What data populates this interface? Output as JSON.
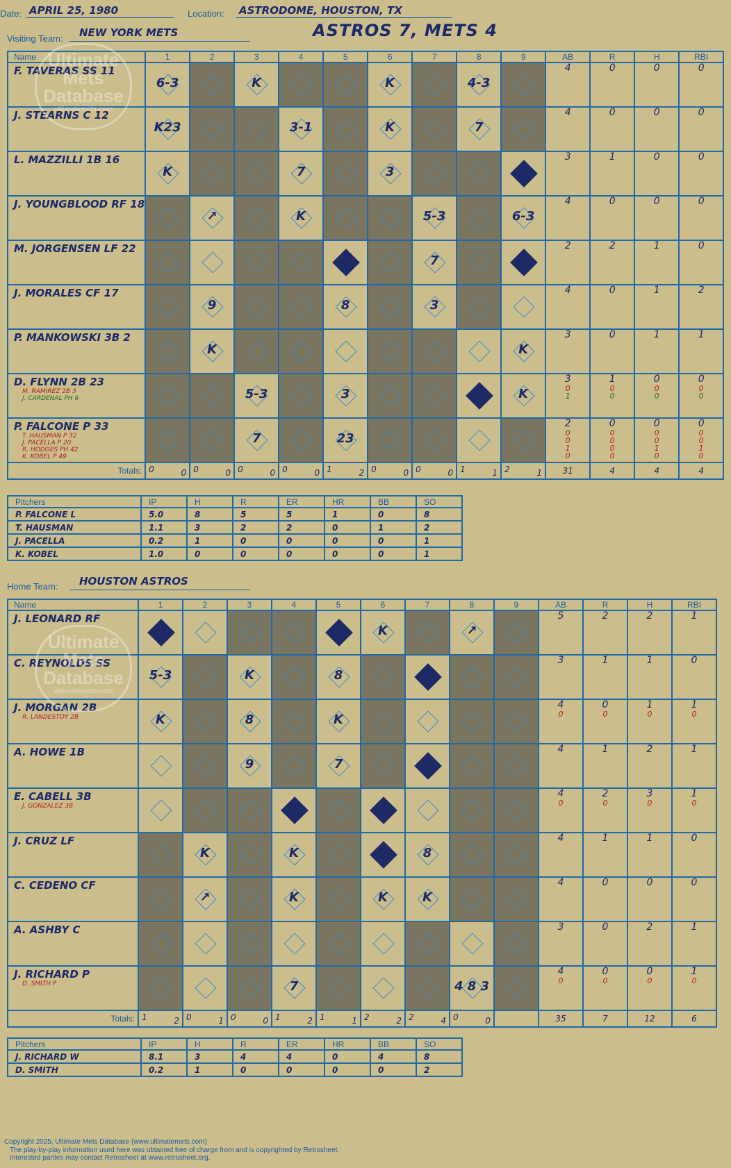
{
  "header": {
    "date_label": "Date:",
    "date": "APRIL 25, 1980",
    "location_label": "Location:",
    "location": "ASTRODOME, HOUSTON, TX",
    "result": "ASTROS 7, METS 4",
    "visiting_label": "Visiting Team:",
    "visiting_team": "NEW YORK METS",
    "home_label": "Home Team:",
    "home_team": "HOUSTON ASTROS"
  },
  "logo": {
    "line1": "Ultimate",
    "line2": "Mets",
    "line3": "Database",
    "url": "ultimatemets.com"
  },
  "columns": {
    "name": "Name",
    "innings": [
      "1",
      "2",
      "3",
      "4",
      "5",
      "6",
      "7",
      "8",
      "9"
    ],
    "ab": "AB",
    "r": "R",
    "h": "H",
    "rbi": "RBI",
    "totals": "Totals:",
    "r_short": "R",
    "h_short": "H"
  },
  "pitch_columns": {
    "name": "Pitchers",
    "ip": "IP",
    "h": "H",
    "r": "R",
    "er": "ER",
    "hr": "HR",
    "bb": "BB",
    "so": "SO"
  },
  "visitors": {
    "batters": [
      {
        "name": "F. TAVERAS SS 11",
        "subs": [],
        "ab": [
          "4"
        ],
        "r": [
          "0"
        ],
        "h": [
          "0"
        ],
        "rbi": [
          "0"
        ]
      },
      {
        "name": "J. STEARNS C 12",
        "subs": [],
        "ab": [
          "4"
        ],
        "r": [
          "0"
        ],
        "h": [
          "0"
        ],
        "rbi": [
          "0"
        ]
      },
      {
        "name": "L. MAZZILLI 1B 16",
        "subs": [],
        "ab": [
          "3"
        ],
        "r": [
          "1"
        ],
        "h": [
          "0"
        ],
        "rbi": [
          "0"
        ]
      },
      {
        "name": "J. YOUNGBLOOD RF 18",
        "subs": [],
        "ab": [
          "4"
        ],
        "r": [
          "0"
        ],
        "h": [
          "0"
        ],
        "rbi": [
          "0"
        ]
      },
      {
        "name": "M. JORGENSEN LF 22",
        "subs": [],
        "ab": [
          "2"
        ],
        "r": [
          "2"
        ],
        "h": [
          "1"
        ],
        "rbi": [
          "0"
        ]
      },
      {
        "name": "J. MORALES CF 17",
        "subs": [],
        "ab": [
          "4"
        ],
        "r": [
          "0"
        ],
        "h": [
          "1"
        ],
        "rbi": [
          "2"
        ]
      },
      {
        "name": "P. MANKOWSKI 3B 2",
        "subs": [],
        "ab": [
          "3"
        ],
        "r": [
          "0"
        ],
        "h": [
          "1"
        ],
        "rbi": [
          "1"
        ]
      },
      {
        "name": "D. FLYNN 2B 23",
        "subs": [
          "M. RAMIREZ 2B 3",
          "J. CARDENAL PH 6"
        ],
        "ab": [
          "3",
          "0",
          "1"
        ],
        "r": [
          "1",
          "0",
          "0"
        ],
        "h": [
          "0",
          "0",
          "0"
        ],
        "rbi": [
          "0",
          "0",
          "0"
        ]
      },
      {
        "name": "P. FALCONE P 33",
        "subs": [
          "T. HAUSMAN P 32",
          "J. PACELLA P 20",
          "R. HODGES PH 42",
          "K. KOBEL P 49"
        ],
        "ab": [
          "2",
          "0",
          "0",
          "1",
          "0"
        ],
        "r": [
          "0",
          "0",
          "0",
          "0",
          "0"
        ],
        "h": [
          "0",
          "0",
          "0",
          "1",
          "0"
        ],
        "rbi": [
          "0",
          "0",
          "0",
          "1",
          "0"
        ]
      }
    ],
    "grid": [
      [
        "t",
        "g",
        "t",
        "g",
        "g",
        "t",
        "g",
        "t",
        "g"
      ],
      [
        "t",
        "g",
        "g",
        "t",
        "g",
        "t",
        "g",
        "t",
        "g"
      ],
      [
        "t",
        "g",
        "g",
        "t",
        "g",
        "t",
        "g",
        "g",
        "t"
      ],
      [
        "g",
        "t",
        "g",
        "t",
        "g",
        "g",
        "t",
        "g",
        "t"
      ],
      [
        "g",
        "t",
        "g",
        "g",
        "t",
        "g",
        "t",
        "g",
        "t"
      ],
      [
        "g",
        "t",
        "g",
        "g",
        "t",
        "g",
        "t",
        "g",
        "t"
      ],
      [
        "g",
        "t",
        "g",
        "g",
        "t",
        "g",
        "g",
        "t",
        "t"
      ],
      [
        "g",
        "g",
        "t",
        "g",
        "t",
        "g",
        "g",
        "t",
        "t"
      ],
      [
        "g",
        "g",
        "t",
        "g",
        "t",
        "g",
        "g",
        "t",
        "g"
      ]
    ],
    "marks": [
      [
        "6-3",
        "",
        "K",
        "",
        "",
        "K",
        "",
        "4-3",
        ""
      ],
      [
        "K23",
        "",
        "",
        "3-1",
        "",
        "K",
        "",
        "7",
        ""
      ],
      [
        "K",
        "",
        "",
        "7",
        "",
        "3",
        "",
        "",
        "●"
      ],
      [
        "",
        "↗",
        "",
        "K",
        "",
        "",
        "5-3",
        "",
        "6-3"
      ],
      [
        "",
        "",
        "",
        "",
        "●",
        "",
        "7",
        "",
        "●"
      ],
      [
        "",
        "9",
        "",
        "",
        "8",
        "",
        "3",
        "",
        ""
      ],
      [
        "",
        "K",
        "",
        "",
        "",
        "",
        "",
        "",
        "K"
      ],
      [
        "",
        "",
        "5-3",
        "",
        "3",
        "",
        "",
        "●",
        "K"
      ],
      [
        "",
        "",
        "7",
        "",
        "23",
        "",
        "",
        "",
        ""
      ]
    ],
    "totals": {
      "r": [
        "0",
        "0",
        "0",
        "0",
        "1",
        "0",
        "0",
        "1",
        "2"
      ],
      "h": [
        "0",
        "0",
        "0",
        "0",
        "2",
        "0",
        "0",
        "1",
        "1"
      ],
      "ab": "31",
      "runs": "4",
      "hits": "4",
      "rbi": "4"
    },
    "pitchers": [
      {
        "name": "P. FALCONE  L",
        "ip": "5.0",
        "h": "8",
        "r": "5",
        "er": "5",
        "hr": "1",
        "bb": "0",
        "so": "8"
      },
      {
        "name": "T. HAUSMAN",
        "ip": "1.1",
        "h": "3",
        "r": "2",
        "er": "2",
        "hr": "0",
        "bb": "1",
        "so": "2"
      },
      {
        "name": "J. PACELLA",
        "ip": "0.2",
        "h": "1",
        "r": "0",
        "er": "0",
        "hr": "0",
        "bb": "0",
        "so": "1"
      },
      {
        "name": "K. KOBEL",
        "ip": "1.0",
        "h": "0",
        "r": "0",
        "er": "0",
        "hr": "0",
        "bb": "0",
        "so": "1"
      }
    ]
  },
  "home": {
    "batters": [
      {
        "name": "J. LEONARD RF",
        "subs": [],
        "ab": [
          "5"
        ],
        "r": [
          "2"
        ],
        "h": [
          "2"
        ],
        "rbi": [
          "1"
        ]
      },
      {
        "name": "C. REYNOLDS SS",
        "subs": [],
        "ab": [
          "3"
        ],
        "r": [
          "1"
        ],
        "h": [
          "1"
        ],
        "rbi": [
          "0"
        ]
      },
      {
        "name": "J. MORGAN 2B",
        "subs": [
          "R. LANDESTOY 2B"
        ],
        "ab": [
          "4",
          "0"
        ],
        "r": [
          "0",
          "0"
        ],
        "h": [
          "1",
          "0"
        ],
        "rbi": [
          "1",
          "0"
        ]
      },
      {
        "name": "A. HOWE 1B",
        "subs": [],
        "ab": [
          "4"
        ],
        "r": [
          "1"
        ],
        "h": [
          "2"
        ],
        "rbi": [
          "1"
        ]
      },
      {
        "name": "E. CABELL 3B",
        "subs": [
          "J. GONZALEZ 3B"
        ],
        "ab": [
          "4",
          "0"
        ],
        "r": [
          "2",
          "0"
        ],
        "h": [
          "3",
          "0"
        ],
        "rbi": [
          "1",
          "0"
        ]
      },
      {
        "name": "J. CRUZ LF",
        "subs": [],
        "ab": [
          "4"
        ],
        "r": [
          "1"
        ],
        "h": [
          "1"
        ],
        "rbi": [
          "0"
        ]
      },
      {
        "name": "C. CEDENO CF",
        "subs": [],
        "ab": [
          "4"
        ],
        "r": [
          "0"
        ],
        "h": [
          "0"
        ],
        "rbi": [
          "0"
        ]
      },
      {
        "name": "A. ASHBY C",
        "subs": [],
        "ab": [
          "3"
        ],
        "r": [
          "0"
        ],
        "h": [
          "2"
        ],
        "rbi": [
          "1"
        ]
      },
      {
        "name": "J. RICHARD P",
        "subs": [
          "D. SMITH P"
        ],
        "ab": [
          "4",
          "0"
        ],
        "r": [
          "0",
          "0"
        ],
        "h": [
          "0",
          "0"
        ],
        "rbi": [
          "1",
          "0"
        ]
      }
    ],
    "grid": [
      [
        "t",
        "t",
        "g",
        "g",
        "t",
        "t",
        "g",
        "t",
        "g"
      ],
      [
        "t",
        "g",
        "t",
        "g",
        "t",
        "g",
        "t",
        "g",
        "g"
      ],
      [
        "t",
        "g",
        "t",
        "g",
        "t",
        "g",
        "t",
        "g",
        "g"
      ],
      [
        "t",
        "g",
        "t",
        "g",
        "t",
        "g",
        "t",
        "g",
        "g"
      ],
      [
        "t",
        "g",
        "g",
        "t",
        "g",
        "t",
        "t",
        "g",
        "g"
      ],
      [
        "g",
        "t",
        "g",
        "t",
        "g",
        "t",
        "t",
        "g",
        "g"
      ],
      [
        "g",
        "t",
        "g",
        "t",
        "g",
        "t",
        "t",
        "g",
        "g"
      ],
      [
        "g",
        "t",
        "g",
        "t",
        "g",
        "t",
        "g",
        "t",
        "g"
      ],
      [
        "g",
        "t",
        "g",
        "t",
        "g",
        "t",
        "g",
        "t",
        "g"
      ]
    ],
    "marks": [
      [
        "●",
        "",
        "",
        "",
        "●",
        "K",
        "",
        "↗",
        ""
      ],
      [
        "5-3",
        "",
        "K",
        "",
        "8",
        "",
        "●",
        "",
        ""
      ],
      [
        "K",
        "",
        "8",
        "",
        "K",
        "",
        "",
        "",
        ""
      ],
      [
        "",
        "",
        "9",
        "",
        "7",
        "",
        "●",
        "",
        ""
      ],
      [
        "",
        "",
        "",
        "●",
        "",
        "●",
        "",
        "",
        ""
      ],
      [
        "",
        "K",
        "",
        "K",
        "",
        "●",
        "8",
        "",
        ""
      ],
      [
        "",
        "↗",
        "",
        "K",
        "",
        "K",
        "K",
        "",
        ""
      ],
      [
        "",
        "",
        "",
        "",
        "",
        "",
        "",
        "",
        ""
      ],
      [
        "",
        "",
        "",
        "7",
        "",
        "",
        "",
        "4 8 3",
        ""
      ]
    ],
    "totals": {
      "r": [
        "1",
        "0",
        "0",
        "1",
        "1",
        "2",
        "2",
        "0",
        ""
      ],
      "h": [
        "2",
        "1",
        "0",
        "2",
        "1",
        "2",
        "4",
        "0",
        ""
      ],
      "ab": "35",
      "runs": "7",
      "hits": "12",
      "rbi": "6"
    },
    "pitchers": [
      {
        "name": "J. RICHARD  W",
        "ip": "8.1",
        "h": "3",
        "r": "4",
        "er": "4",
        "hr": "0",
        "bb": "4",
        "so": "8"
      },
      {
        "name": "D. SMITH",
        "ip": "0.2",
        "h": "1",
        "r": "0",
        "er": "0",
        "hr": "0",
        "bb": "0",
        "so": "2"
      }
    ]
  },
  "footer": {
    "copyright": "Copyright 2025, Ultimate Mets Database (www.ultimatemets.com)",
    "line2": "The play-by-play information used here was obtained free of charge from and is copyrighted by Retrosheet.",
    "line3": "Interested parties may contact Retrosheet at www.retrosheet.org."
  }
}
